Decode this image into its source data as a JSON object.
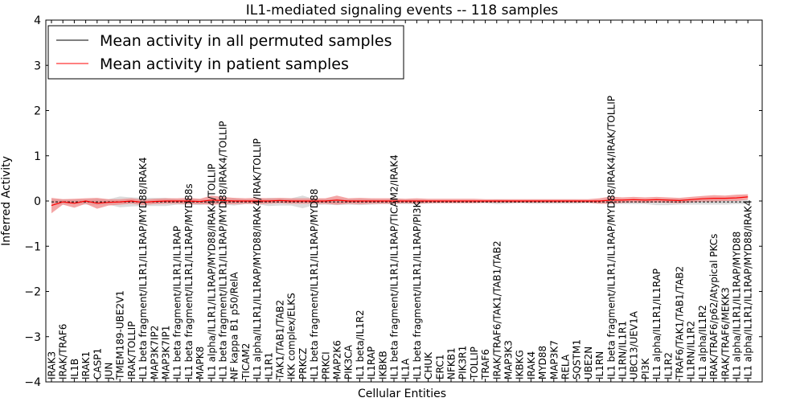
{
  "chart_data": {
    "type": "line",
    "title": "IL1-mediated signaling events -- 118 samples",
    "xlabel": "Cellular Entities",
    "ylabel": "Inferred Activity",
    "ylim": [
      -4,
      4
    ],
    "yticks": [
      4,
      3,
      2,
      1,
      0,
      -1,
      -2,
      -3,
      -4
    ],
    "ytick_labels": [
      "4",
      "3",
      "2",
      "1",
      "0",
      "−1",
      "−2",
      "−3",
      "−4"
    ],
    "legend_placement": "top-left",
    "categories": [
      "IRAK3",
      "IRAK/TRAF6",
      "IL1B",
      "IRAK1",
      "CASP1",
      "JUN",
      "TMEM189-UBE2V1",
      "IRAK/TOLLIP",
      "IL1 beta fragment/IL1R1/IL1RAP/MYD88/IRAK4",
      "MAP3K7IP2",
      "MAP3K7IP1",
      "IL1 beta fragment/IL1R1/IL1RAP",
      "IL1 beta fragment/IL1R1/IL1RAP/MYD88s",
      "MAPK8",
      "IL1 alpha/IL1R1/IL1RAP/MYD88/IRAK4/TOLLIP",
      "IL1 beta fragment/IL1R1/IL1RAP/MYD88/IRAK4/TOLLIP",
      "NF kappa B1 p50/RelA",
      "TICAM2",
      "IL1 alpha/IL1R1/IL1RAP/MYD88/IRAK4/IRAK/TOLLIP",
      "IL1R1",
      "TAK1/TAB1/TAB2",
      "IKK complex/ELKS",
      "PRKCZ",
      "IL1 beta fragment/IL1R1/IL1RAP/MYD88",
      "PRKCI",
      "MAP2K6",
      "PIK3CA",
      "IL1 beta/IL1R2",
      "IL1RAP",
      "IKBKB",
      "IL1 beta fragment/IL1R1/IL1RAP/TICAM2/IRAK4",
      "IL1A",
      "IL1 beta fragment/IL1R1/IL1RAP/PI3K",
      "CHUK",
      "ERC1",
      "NFKB1",
      "PIK3R1",
      "TOLLIP",
      "TRAF6",
      "IRAK/TRAF6/TAK1/TAB1/TAB2",
      "MAP3K3",
      "IKBKG",
      "IRAK4",
      "MYD88",
      "MAP3K7",
      "RELA",
      "SQSTM1",
      "UBE2N",
      "IL1RN",
      "IL1 beta fragment/IL1R1/IL1RAP/MYD88/IRAK4/IRAK/TOLLIP",
      "IL1RN/IL1R1",
      "UBC13/UEV1A",
      "PI3K",
      "IL1 alpha/IL1R1/IL1RAP",
      "IL1R2",
      "TRAF6/TAK1/TAB1/TAB2",
      "IL1RN/IL1R2",
      "IL1 alpha/IL1R2",
      "IRAK/TRAF6/p62/Atypical PKCs",
      "IRAK/TRAF6/MEKK3",
      "IL1 alpha/IL1R1/IL1RAP/MYD88",
      "IL1 alpha/IL1R1/IL1RAP/MYD88/IRAK4"
    ],
    "series": [
      {
        "name": "Mean activity in all permuted samples",
        "color": "#000000",
        "values": [
          -0.02,
          -0.02,
          -0.02,
          -0.02,
          -0.02,
          -0.02,
          -0.02,
          -0.02,
          -0.02,
          -0.02,
          -0.02,
          -0.02,
          -0.02,
          -0.02,
          -0.02,
          -0.02,
          -0.02,
          -0.02,
          -0.02,
          -0.02,
          -0.02,
          -0.02,
          -0.02,
          -0.02,
          -0.02,
          -0.02,
          -0.02,
          -0.02,
          -0.02,
          -0.02,
          -0.02,
          -0.02,
          -0.02,
          -0.02,
          -0.02,
          -0.02,
          -0.02,
          -0.02,
          -0.02,
          -0.02,
          -0.02,
          -0.02,
          -0.02,
          -0.02,
          -0.02,
          -0.02,
          -0.02,
          -0.02,
          -0.02,
          -0.02,
          -0.02,
          -0.02,
          -0.02,
          -0.02,
          -0.02,
          -0.02,
          -0.02,
          -0.02,
          -0.02,
          -0.02,
          -0.02,
          -0.02
        ],
        "band": [
          0.06,
          0.06,
          0.05,
          0.06,
          0.07,
          0.06,
          0.12,
          0.1,
          0.09,
          0.09,
          0.09,
          0.06,
          0.06,
          0.07,
          0.05,
          0.06,
          0.08,
          0.05,
          0.05,
          0.09,
          0.08,
          0.08,
          0.14,
          0.07,
          0.06,
          0.07,
          0.06,
          0.07,
          0.06,
          0.05,
          0.05,
          0.05,
          0.05,
          0.04,
          0.03,
          0.03,
          0.03,
          0.03,
          0.03,
          0.05,
          0.04,
          0.03,
          0.04,
          0.04,
          0.04,
          0.04,
          0.04,
          0.03,
          0.04,
          0.05,
          0.05,
          0.05,
          0.05,
          0.07,
          0.07,
          0.06,
          0.06,
          0.06,
          0.06,
          0.06,
          0.05,
          0.05
        ]
      },
      {
        "name": "Mean activity in patient samples",
        "color": "#ff0000",
        "values": [
          -0.1,
          -0.02,
          -0.05,
          0.0,
          -0.05,
          -0.03,
          -0.02,
          0.0,
          -0.03,
          -0.01,
          0.0,
          0.0,
          0.0,
          -0.01,
          0.02,
          0.01,
          0.0,
          0.0,
          0.0,
          0.0,
          0.01,
          0.0,
          0.0,
          0.0,
          0.0,
          0.02,
          0.0,
          0.0,
          0.0,
          0.0,
          0.0,
          0.0,
          0.0,
          0.0,
          0.0,
          0.0,
          0.0,
          0.0,
          0.0,
          0.0,
          0.0,
          0.0,
          0.0,
          0.0,
          0.0,
          0.0,
          0.0,
          0.0,
          0.0,
          0.02,
          0.02,
          0.03,
          0.02,
          0.03,
          0.02,
          0.01,
          0.03,
          0.05,
          0.06,
          0.06,
          0.07,
          0.09
        ],
        "band": [
          0.17,
          0.06,
          0.1,
          0.06,
          0.12,
          0.07,
          0.06,
          0.06,
          0.06,
          0.06,
          0.06,
          0.06,
          0.07,
          0.06,
          0.1,
          0.08,
          0.07,
          0.06,
          0.07,
          0.06,
          0.06,
          0.06,
          0.06,
          0.06,
          0.06,
          0.1,
          0.06,
          0.07,
          0.06,
          0.06,
          0.06,
          0.05,
          0.06,
          0.05,
          0.05,
          0.05,
          0.05,
          0.05,
          0.04,
          0.04,
          0.04,
          0.04,
          0.04,
          0.04,
          0.04,
          0.04,
          0.04,
          0.04,
          0.06,
          0.08,
          0.06,
          0.06,
          0.06,
          0.06,
          0.06,
          0.06,
          0.06,
          0.06,
          0.07,
          0.06,
          0.07,
          0.06
        ]
      }
    ]
  }
}
